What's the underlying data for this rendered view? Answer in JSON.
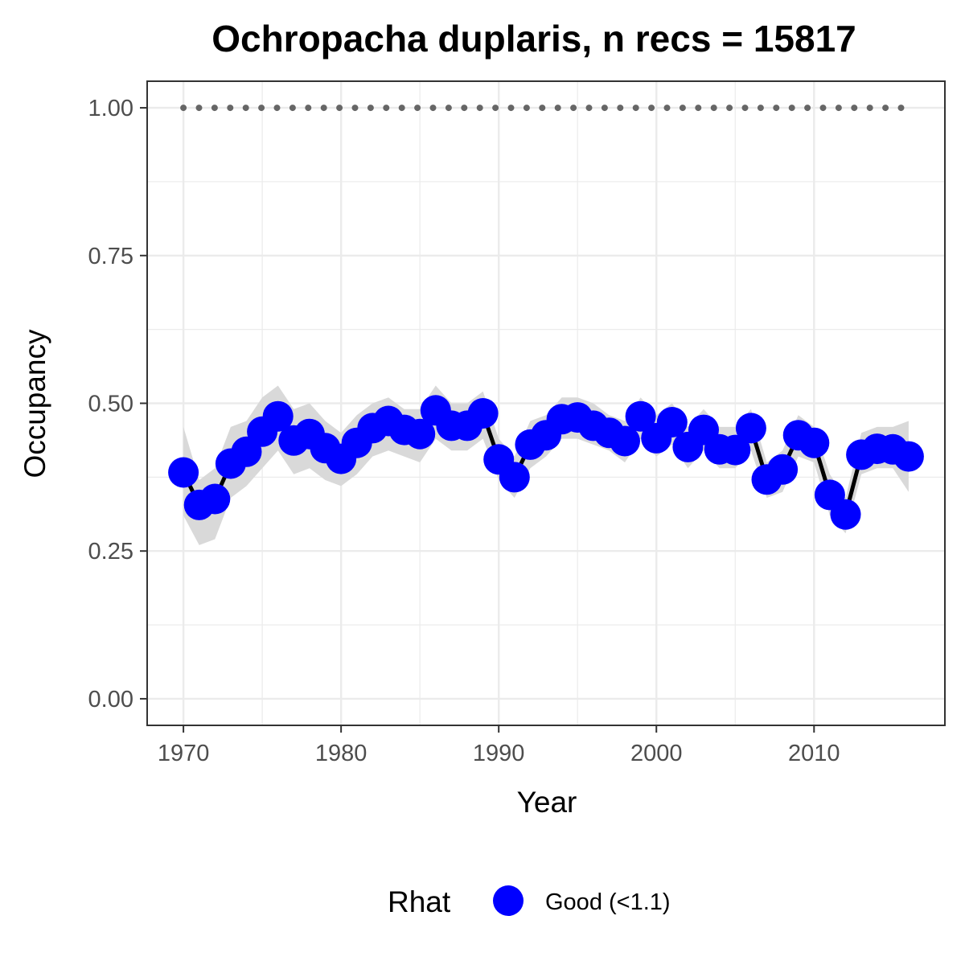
{
  "chart_data": {
    "type": "line",
    "title": "Ochropacha duplaris, n recs = 15817",
    "xlabel": "Year",
    "ylabel": "Occupancy",
    "xlim": [
      1967.7,
      2018.3
    ],
    "ylim": [
      -0.045,
      1.045
    ],
    "x_ticks": [
      1970,
      1980,
      1990,
      2000,
      2010
    ],
    "x_tick_labels": [
      "1970",
      "1980",
      "1990",
      "2000",
      "2010"
    ],
    "y_ticks": [
      0,
      0.25,
      0.5,
      0.75,
      1.0
    ],
    "y_tick_labels": [
      "0.00",
      "0.25",
      "0.50",
      "0.75",
      "1.00"
    ],
    "grid": true,
    "legend": {
      "position": "bottom",
      "title": "Rhat",
      "entries": [
        {
          "label": "Good (<1.1)",
          "color": "#0000ff"
        }
      ]
    },
    "colors": {
      "points": "#0000ff",
      "line": "#000000",
      "ribbon": "#d9d9d9",
      "reference": "#666666",
      "grid": "#ebebeb",
      "panel_border": "#333333"
    },
    "reference_line": {
      "y": 1.0,
      "style": "dotted"
    },
    "series": [
      {
        "x": [
          1970,
          1971,
          1972,
          1973,
          1974,
          1975,
          1976,
          1977,
          1978,
          1979,
          1980,
          1981,
          1982,
          1983,
          1984,
          1985,
          1986,
          1987,
          1988,
          1989,
          1990,
          1991,
          1992,
          1993,
          1994,
          1995,
          1996,
          1997,
          1998,
          1999,
          2000,
          2001,
          2002,
          2003,
          2004,
          2005,
          2006,
          2007,
          2008,
          2009,
          2010,
          2011,
          2012,
          2013,
          2014,
          2015,
          2016
        ],
        "values": [
          0.383,
          0.328,
          0.338,
          0.398,
          0.418,
          0.452,
          0.478,
          0.437,
          0.448,
          0.424,
          0.406,
          0.433,
          0.458,
          0.47,
          0.455,
          0.448,
          0.488,
          0.462,
          0.462,
          0.483,
          0.405,
          0.375,
          0.43,
          0.446,
          0.473,
          0.476,
          0.462,
          0.45,
          0.436,
          0.478,
          0.441,
          0.468,
          0.426,
          0.455,
          0.422,
          0.421,
          0.458,
          0.371,
          0.388,
          0.446,
          0.433,
          0.345,
          0.312,
          0.413,
          0.423,
          0.422,
          0.41
        ],
        "lower": [
          0.31,
          0.26,
          0.27,
          0.34,
          0.36,
          0.39,
          0.42,
          0.38,
          0.39,
          0.37,
          0.36,
          0.38,
          0.41,
          0.42,
          0.41,
          0.4,
          0.44,
          0.42,
          0.42,
          0.44,
          0.37,
          0.34,
          0.39,
          0.41,
          0.44,
          0.44,
          0.43,
          0.42,
          0.4,
          0.44,
          0.41,
          0.43,
          0.39,
          0.42,
          0.39,
          0.39,
          0.42,
          0.34,
          0.35,
          0.41,
          0.4,
          0.31,
          0.28,
          0.38,
          0.39,
          0.39,
          0.35
        ],
        "upper": [
          0.46,
          0.37,
          0.39,
          0.46,
          0.47,
          0.51,
          0.53,
          0.49,
          0.5,
          0.47,
          0.45,
          0.48,
          0.5,
          0.51,
          0.49,
          0.49,
          0.53,
          0.5,
          0.5,
          0.52,
          0.44,
          0.41,
          0.47,
          0.48,
          0.51,
          0.51,
          0.5,
          0.48,
          0.47,
          0.51,
          0.48,
          0.5,
          0.46,
          0.49,
          0.46,
          0.46,
          0.49,
          0.4,
          0.42,
          0.48,
          0.46,
          0.38,
          0.34,
          0.45,
          0.46,
          0.46,
          0.47
        ]
      }
    ]
  }
}
